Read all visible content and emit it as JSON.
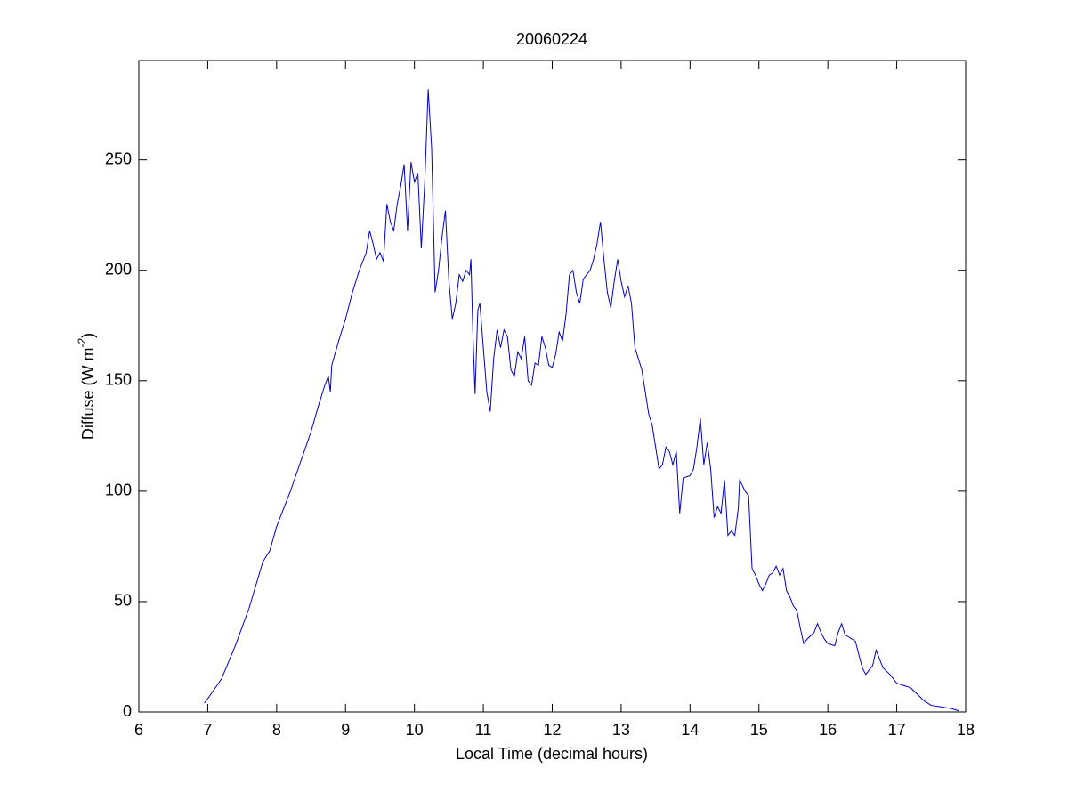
{
  "chart_data": {
    "type": "line",
    "title": "20060224",
    "xlabel": "Local Time (decimal hours)",
    "ylabel": {
      "text": "Diffuse (W m",
      "superscript": "-2",
      "suffix": ")"
    },
    "color": "#0000c8",
    "xlim": [
      6,
      18
    ],
    "xticks": [
      6,
      7,
      8,
      9,
      10,
      11,
      12,
      13,
      14,
      15,
      16,
      17,
      18
    ],
    "ylim": [
      0,
      295
    ],
    "yticks": [
      0,
      50,
      100,
      150,
      200,
      250
    ],
    "grid": false,
    "x": [
      6.95,
      7.0,
      7.2,
      7.4,
      7.6,
      7.8,
      7.9,
      8.0,
      8.2,
      8.4,
      8.5,
      8.6,
      8.7,
      8.75,
      8.78,
      8.8,
      8.9,
      9.0,
      9.1,
      9.2,
      9.3,
      9.35,
      9.4,
      9.45,
      9.5,
      9.55,
      9.6,
      9.65,
      9.7,
      9.75,
      9.8,
      9.85,
      9.9,
      9.95,
      10.0,
      10.05,
      10.1,
      10.15,
      10.2,
      10.25,
      10.3,
      10.35,
      10.4,
      10.45,
      10.5,
      10.55,
      10.6,
      10.65,
      10.7,
      10.75,
      10.8,
      10.82,
      10.85,
      10.88,
      10.92,
      10.95,
      11.0,
      11.05,
      11.1,
      11.15,
      11.2,
      11.25,
      11.3,
      11.35,
      11.4,
      11.45,
      11.5,
      11.55,
      11.6,
      11.65,
      11.7,
      11.75,
      11.8,
      11.85,
      11.9,
      11.95,
      12.0,
      12.05,
      12.1,
      12.15,
      12.2,
      12.25,
      12.3,
      12.35,
      12.4,
      12.45,
      12.5,
      12.55,
      12.6,
      12.65,
      12.7,
      12.75,
      12.8,
      12.85,
      12.9,
      12.95,
      13.0,
      13.05,
      13.1,
      13.15,
      13.2,
      13.3,
      13.4,
      13.45,
      13.5,
      13.55,
      13.6,
      13.65,
      13.7,
      13.75,
      13.8,
      13.85,
      13.9,
      14.0,
      14.05,
      14.1,
      14.15,
      14.2,
      14.25,
      14.3,
      14.35,
      14.4,
      14.45,
      14.5,
      14.55,
      14.6,
      14.65,
      14.7,
      14.72,
      14.8,
      14.85,
      14.9,
      14.95,
      15.0,
      15.05,
      15.1,
      15.15,
      15.2,
      15.25,
      15.3,
      15.35,
      15.4,
      15.45,
      15.5,
      15.55,
      15.6,
      15.65,
      15.7,
      15.8,
      15.85,
      15.9,
      15.95,
      16.0,
      16.1,
      16.15,
      16.2,
      16.25,
      16.3,
      16.4,
      16.45,
      16.5,
      16.55,
      16.6,
      16.65,
      16.7,
      16.75,
      16.8,
      16.9,
      17.0,
      17.1,
      17.2,
      17.3,
      17.4,
      17.5,
      17.6,
      17.7,
      17.8,
      17.9
    ],
    "values": [
      4,
      6,
      15,
      30,
      47,
      68,
      73,
      84,
      100,
      118,
      127,
      138,
      148,
      152,
      145,
      157,
      168,
      178,
      190,
      200,
      208,
      218,
      212,
      205,
      208,
      204,
      230,
      222,
      218,
      230,
      238,
      248,
      218,
      249,
      240,
      244,
      210,
      240,
      282,
      255,
      190,
      200,
      215,
      227,
      195,
      178,
      185,
      198,
      195,
      200,
      198,
      205,
      170,
      144,
      182,
      185,
      165,
      145,
      136,
      160,
      173,
      165,
      173,
      170,
      155,
      152,
      163,
      160,
      170,
      150,
      148,
      158,
      157,
      170,
      165,
      157,
      156,
      162,
      172,
      168,
      180,
      198,
      200,
      190,
      185,
      196,
      198,
      200,
      205,
      212,
      222,
      205,
      190,
      183,
      195,
      205,
      195,
      188,
      193,
      185,
      165,
      155,
      135,
      130,
      120,
      110,
      112,
      120,
      118,
      112,
      118,
      90,
      106,
      107,
      110,
      120,
      133,
      112,
      122,
      110,
      88,
      93,
      90,
      105,
      80,
      82,
      80,
      92,
      105,
      100,
      98,
      65,
      62,
      58,
      55,
      58,
      62,
      63,
      66,
      62,
      65,
      55,
      52,
      48,
      46,
      38,
      31,
      33,
      36,
      40,
      36,
      33,
      31,
      30,
      36,
      40,
      35,
      34,
      32,
      26,
      20,
      17,
      19,
      21,
      28,
      24,
      20,
      17,
      13,
      12,
      11,
      8,
      5,
      3,
      2.5,
      2,
      1.5,
      0.5
    ]
  }
}
